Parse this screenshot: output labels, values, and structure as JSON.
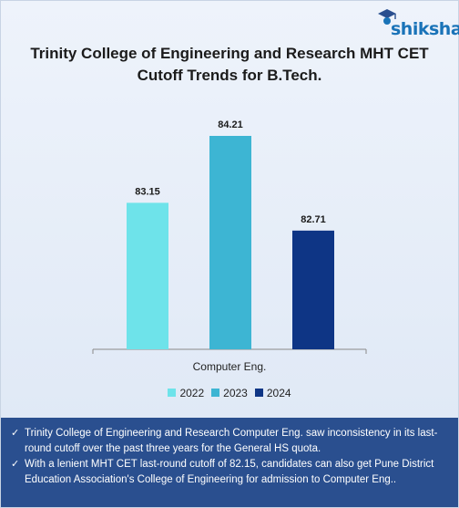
{
  "logo": {
    "text": "shiksha"
  },
  "chart_data": {
    "type": "bar",
    "title": "Trinity College of Engineering and Research MHT CET Cutoff Trends for B.Tech.",
    "categories": [
      "Computer Eng."
    ],
    "series": [
      {
        "name": "2022",
        "values": [
          83.15
        ],
        "color": "#6ee3ea"
      },
      {
        "name": "2023",
        "values": [
          84.21
        ],
        "color": "#3db5d3"
      },
      {
        "name": "2024",
        "values": [
          82.71
        ],
        "color": "#0e3585"
      }
    ],
    "data_labels": [
      "83.15",
      "84.21",
      "82.71"
    ],
    "legend_position": "bottom",
    "grid": false
  },
  "notes": [
    "Trinity College of Engineering and Research Computer Eng. saw inconsistency in its last-round cutoff over the past three years for the General HS quota.",
    "With a lenient MHT CET last-round cutoff of 82.15, candidates can also get Pune District Education Association's College of Engineering for admission to Computer Eng.."
  ]
}
